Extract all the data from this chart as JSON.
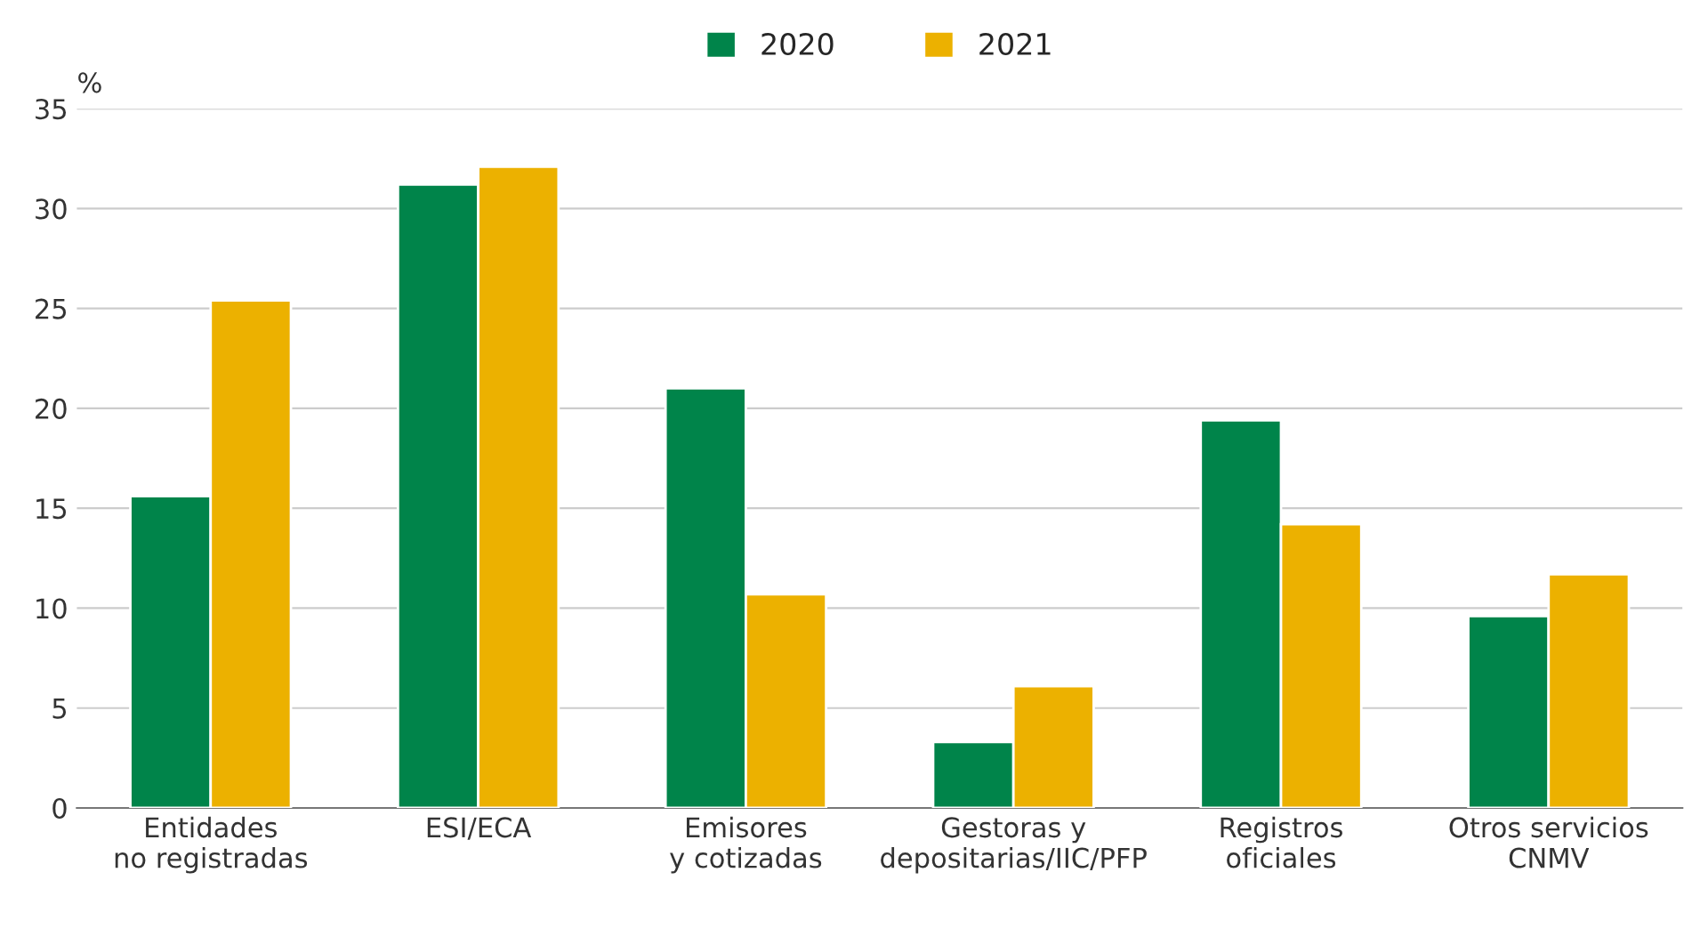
{
  "chart_data": {
    "type": "bar",
    "ylabel": "%",
    "categories": [
      "Entidades\nno registradas",
      "ESI/ECA",
      "Emisores\ny cotizadas",
      "Gestoras y\ndepositarias/IIC/PFP",
      "Registros\noficiales",
      "Otros servicios\nCNMV"
    ],
    "series": [
      {
        "name": "2020",
        "color": "#00844a",
        "values": [
          15.6,
          31.2,
          21.0,
          3.3,
          19.4,
          9.6
        ]
      },
      {
        "name": "2021",
        "color": "#ecb100",
        "values": [
          25.4,
          32.1,
          10.7,
          6.1,
          14.2,
          11.7
        ]
      }
    ],
    "ylim": [
      0,
      35
    ],
    "yticks": [
      0,
      5,
      10,
      15,
      20,
      25,
      30,
      35
    ],
    "grid": "y",
    "legend": "top"
  }
}
